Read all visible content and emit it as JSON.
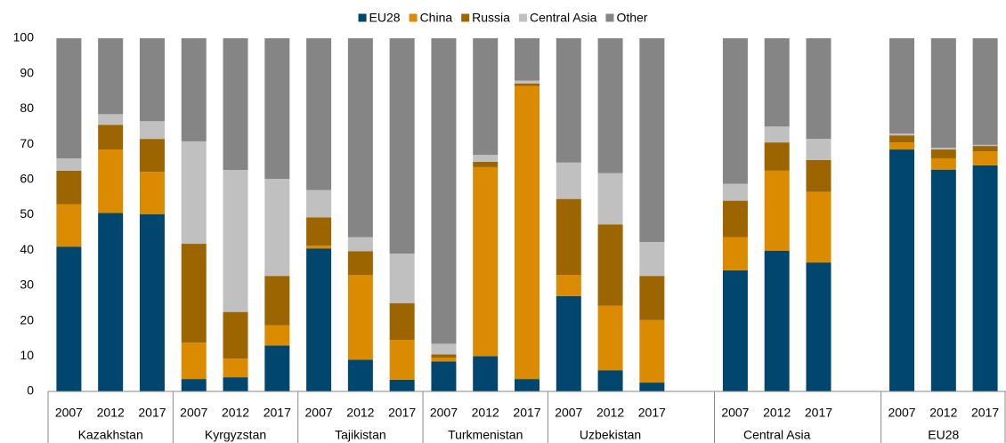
{
  "chart_data": {
    "type": "stacked_bar",
    "categories": [
      "2007",
      "2012",
      "2017",
      "2007",
      "2012",
      "2017",
      "2007",
      "2012",
      "2017",
      "2007",
      "2012",
      "2017",
      "2007",
      "2012",
      "2017",
      null,
      "2007",
      "2012",
      "2017",
      null,
      "2007",
      "2012",
      "2017"
    ],
    "groups": [
      "Kazakhstan",
      "Kyrgyzstan",
      "Tajikistan",
      "Turkmenistan",
      "Uzbekistan",
      "Central Asia",
      "EU28"
    ],
    "series": [
      {
        "name": "EU28",
        "color": "#00466e",
        "values": [
          41,
          50.5,
          50.2,
          3.5,
          4,
          13,
          40.5,
          9,
          3.3,
          8.5,
          10,
          3.5,
          27,
          6,
          2.5,
          null,
          34.3,
          39.8,
          36.5,
          null,
          68.5,
          62.8,
          64
        ]
      },
      {
        "name": "China",
        "color": "#db8b00",
        "values": [
          12,
          18,
          12,
          10.3,
          5.3,
          5.7,
          0.8,
          24,
          11.3,
          1,
          53.5,
          83,
          6,
          18.3,
          17.7,
          null,
          9.4,
          22.7,
          20,
          null,
          2,
          3.2,
          4
        ]
      },
      {
        "name": "Russia",
        "color": "#9c6500",
        "values": [
          9.5,
          7,
          9.3,
          28,
          13.2,
          14,
          8,
          6.7,
          10.4,
          1,
          1.5,
          0.7,
          21.5,
          23,
          12.5,
          null,
          10.3,
          8,
          9,
          null,
          2,
          2.5,
          1.5
        ]
      },
      {
        "name": "Central Asia",
        "color": "#c0c0c0",
        "values": [
          3.5,
          3,
          5,
          29,
          40.2,
          27.5,
          7.7,
          4,
          14,
          3,
          2,
          0.8,
          10.3,
          14.5,
          9.6,
          null,
          4.8,
          4.5,
          6,
          null,
          0.5,
          0.5,
          0.3
        ]
      },
      {
        "name": "Other",
        "color": "#858585",
        "values": [
          34,
          21.5,
          23.5,
          29.2,
          37.3,
          39.8,
          43,
          56.3,
          61,
          86.5,
          33,
          12,
          35.2,
          38.2,
          57.7,
          null,
          41.2,
          25,
          28.5,
          null,
          27,
          31,
          30.2
        ]
      }
    ],
    "ylim": [
      0,
      100
    ],
    "yticks": [
      0,
      10,
      20,
      30,
      40,
      50,
      60,
      70,
      80,
      90,
      100
    ],
    "grid": false,
    "legend": "top"
  }
}
